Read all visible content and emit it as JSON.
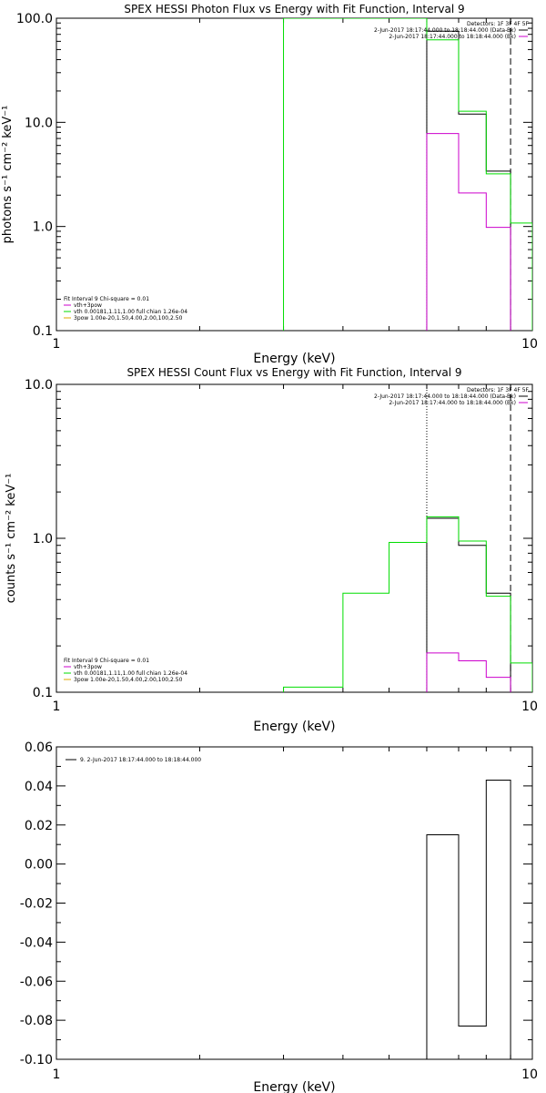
{
  "colors": {
    "black": "#000000",
    "magenta": "#cc00cc",
    "green": "#00dd00",
    "orange": "#ddaa00"
  },
  "chart_data": [
    {
      "type": "line",
      "title": "SPEX HESSI Photon Flux vs Energy with Fit Function, Interval 9",
      "xlabel": "Energy (keV)",
      "ylabel": "photons s⁻¹ cm⁻² keV⁻¹",
      "xscale": "log",
      "yscale": "log",
      "xlim": [
        1,
        10
      ],
      "ylim": [
        0.1,
        100
      ],
      "xticks": [
        {
          "v": 1,
          "label": "1"
        },
        {
          "v": 10,
          "label": "10"
        }
      ],
      "yticks": [
        {
          "v": 0.1,
          "label": "0.1"
        },
        {
          "v": 1,
          "label": "1.0"
        },
        {
          "v": 10,
          "label": "10.0"
        },
        {
          "v": 100,
          "label": "100.0"
        }
      ],
      "vlines": [
        {
          "x": 6.0,
          "style": "dotted",
          "color": "black"
        },
        {
          "x": 9.0,
          "style": "dashed",
          "color": "black"
        }
      ],
      "legend_top": {
        "header": "Detectors: 1F 3F 4F 5F",
        "entries": [
          {
            "label": "2-Jun-2017 18:17:44.000 to 18:18:44.000 (Data-Bk)",
            "color": "black"
          },
          {
            "label": "2-Jun-2017 18:17:44.000 to 18:18:44.000 (Bk)",
            "color": "magenta"
          }
        ]
      },
      "legend_bottom": {
        "header": "Fit Interval 9   Chi-square = 0.01",
        "entries": [
          {
            "label": "vth+3pow",
            "color": "magenta"
          },
          {
            "label": "vth 0.00181,1.11,1.00  full chian 1.26e-04",
            "color": "green"
          },
          {
            "label": "3pow 1.00e-20,1.50,4.00,2.00,100,2.50",
            "color": "orange"
          }
        ]
      },
      "series": [
        {
          "color": "black",
          "edges": [
            6.0,
            7.0,
            8.0,
            9.0
          ],
          "values": [
            75,
            12,
            3.4
          ]
        },
        {
          "color": "magenta",
          "edges": [
            6.0,
            7.0,
            8.0,
            9.0
          ],
          "values": [
            7.8,
            2.1,
            0.98
          ]
        },
        {
          "color": "green",
          "edges": [
            3.0,
            5.0,
            6.0,
            7.0,
            8.0,
            9.0,
            10.0
          ],
          "values": [
            130,
            130,
            62,
            12.8,
            3.2,
            1.08
          ]
        }
      ]
    },
    {
      "type": "line",
      "title": "SPEX HESSI Count Flux vs Energy with Fit Function, Interval 9",
      "xlabel": "Energy (keV)",
      "ylabel": "counts s⁻¹ cm⁻² keV⁻¹",
      "xscale": "log",
      "yscale": "log",
      "xlim": [
        1,
        10
      ],
      "ylim": [
        0.1,
        10
      ],
      "xticks": [
        {
          "v": 1,
          "label": "1"
        },
        {
          "v": 10,
          "label": "10"
        }
      ],
      "yticks": [
        {
          "v": 0.1,
          "label": "0.1"
        },
        {
          "v": 1,
          "label": "1.0"
        },
        {
          "v": 10,
          "label": "10.0"
        }
      ],
      "vlines": [
        {
          "x": 6.0,
          "style": "dotted",
          "color": "black"
        },
        {
          "x": 9.0,
          "style": "dashed",
          "color": "black"
        }
      ],
      "legend_top": {
        "header": "Detectors: 1F 3F 4F 5F",
        "entries": [
          {
            "label": "2-Jun-2017 18:17:44.000 to 18:18:44.000 (Data-Bk)",
            "color": "black"
          },
          {
            "label": "2-Jun-2017 18:17:44.000 to 18:18:44.000 (Bk)",
            "color": "magenta"
          }
        ]
      },
      "legend_bottom": {
        "header": "Fit Interval 9   Chi-square = 0.01",
        "entries": [
          {
            "label": "vth+3pow",
            "color": "magenta"
          },
          {
            "label": "vth 0.00181,1.11,1.00  full chian 1.26e-04",
            "color": "green"
          },
          {
            "label": "3pow 1.00e-20,1.50,4.00,2.00,100,2.50",
            "color": "orange"
          }
        ]
      },
      "series": [
        {
          "color": "black",
          "edges": [
            6.0,
            7.0,
            8.0,
            9.0
          ],
          "values": [
            1.35,
            0.9,
            0.44
          ]
        },
        {
          "color": "magenta",
          "edges": [
            6.0,
            7.0,
            8.0,
            9.0
          ],
          "values": [
            0.18,
            0.16,
            0.125
          ]
        },
        {
          "color": "green",
          "edges": [
            3.0,
            4.0,
            5.0,
            6.0,
            7.0,
            8.0,
            9.0,
            10.0
          ],
          "values": [
            0.108,
            0.44,
            0.94,
            1.38,
            0.96,
            0.42,
            0.155
          ]
        }
      ]
    },
    {
      "type": "line",
      "title": "",
      "xlabel": "Energy (keV)",
      "ylabel": "",
      "xscale": "log",
      "yscale": "linear",
      "xlim": [
        1,
        10
      ],
      "ylim": [
        -0.1,
        0.06
      ],
      "xticks": [
        {
          "v": 1,
          "label": "1"
        },
        {
          "v": 10,
          "label": "10"
        }
      ],
      "yticks": [
        {
          "v": 0.06,
          "label": "0.06"
        },
        {
          "v": 0.04,
          "label": "0.04"
        },
        {
          "v": 0.02,
          "label": "0.02"
        },
        {
          "v": 0.0,
          "label": "0.00"
        },
        {
          "v": -0.02,
          "label": "-0.02"
        },
        {
          "v": -0.04,
          "label": "-0.04"
        },
        {
          "v": -0.06,
          "label": "-0.06"
        },
        {
          "v": -0.08,
          "label": "-0.08"
        },
        {
          "v": -0.1,
          "label": "-0.10"
        }
      ],
      "vlines": [],
      "legend_top": {
        "header": "",
        "entries": [
          {
            "label": "9. 2-Jun-2017 18:17:44.000 to 18:18:44.000",
            "color": "black"
          }
        ]
      },
      "series": [
        {
          "color": "black",
          "edges": [
            6.0,
            7.0,
            8.0,
            9.0
          ],
          "values": [
            0.015,
            -0.083,
            0.043
          ],
          "from_floor": true
        }
      ]
    }
  ]
}
